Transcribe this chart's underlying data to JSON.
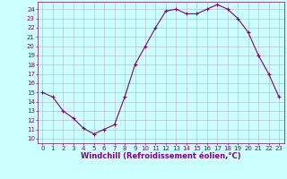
{
  "x": [
    0,
    1,
    2,
    3,
    4,
    5,
    6,
    7,
    8,
    9,
    10,
    11,
    12,
    13,
    14,
    15,
    16,
    17,
    18,
    19,
    20,
    21,
    22,
    23
  ],
  "y": [
    15,
    14.5,
    13,
    12.2,
    11.1,
    10.5,
    11,
    11.5,
    14.5,
    18,
    20,
    22,
    23.8,
    24,
    23.5,
    23.5,
    24,
    24.5,
    24,
    23,
    21.5,
    19,
    17,
    14.5
  ],
  "line_color": "#800080",
  "marker_color": "#800080",
  "bg_color": "#ccffff",
  "grid_color": "#b0b0cc",
  "xlabel": "Windchill (Refroidissement éolien,°C)",
  "xlim": [
    -0.5,
    23.5
  ],
  "ylim": [
    9.5,
    24.8
  ],
  "yticks": [
    10,
    11,
    12,
    13,
    14,
    15,
    16,
    17,
    18,
    19,
    20,
    21,
    22,
    23,
    24
  ],
  "xticks": [
    0,
    1,
    2,
    3,
    4,
    5,
    6,
    7,
    8,
    9,
    10,
    11,
    12,
    13,
    14,
    15,
    16,
    17,
    18,
    19,
    20,
    21,
    22,
    23
  ],
  "tick_color": "#800080",
  "tick_fontsize": 5.0,
  "xlabel_fontsize": 6.0,
  "marker_size": 3.0,
  "line_width": 0.8
}
